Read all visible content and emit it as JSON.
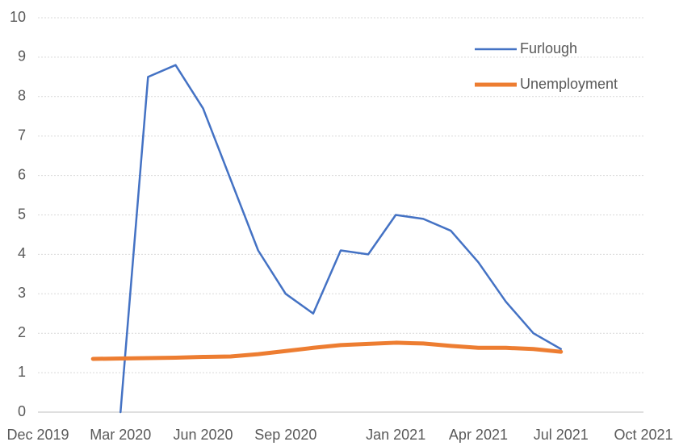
{
  "chart_data": {
    "type": "line",
    "x": [
      "2020-02",
      "2020-03",
      "2020-04",
      "2020-05",
      "2020-06",
      "2020-07",
      "2020-08",
      "2020-09",
      "2020-10",
      "2020-11",
      "2020-12",
      "2021-01",
      "2021-02",
      "2021-03",
      "2021-04",
      "2021-05",
      "2021-06",
      "2021-07"
    ],
    "series": [
      {
        "name": "Furlough",
        "color": "#4472c4",
        "values": [
          null,
          0,
          8.5,
          8.8,
          7.7,
          5.9,
          4.1,
          3.0,
          2.5,
          4.1,
          4.0,
          5.0,
          4.9,
          4.6,
          3.8,
          2.8,
          2.0,
          1.6
        ]
      },
      {
        "name": "Unemployment",
        "color": "#ed7d31",
        "values": [
          1.35,
          1.36,
          1.37,
          1.38,
          1.4,
          1.41,
          1.47,
          1.55,
          1.63,
          1.7,
          1.73,
          1.76,
          1.74,
          1.68,
          1.63,
          1.63,
          1.6,
          1.53
        ]
      }
    ],
    "xlim": [
      "2019-12",
      "2021-10"
    ],
    "xticks": [
      {
        "value": "2019-12",
        "label": "Dec 2019"
      },
      {
        "value": "2020-03",
        "label": "Mar 2020"
      },
      {
        "value": "2020-06",
        "label": "Jun 2020"
      },
      {
        "value": "2020-09",
        "label": "Sep 2020"
      },
      {
        "value": "2021-01",
        "label": "Jan 2021"
      },
      {
        "value": "2021-04",
        "label": "Apr 2021"
      },
      {
        "value": "2021-07",
        "label": "Jul 2021"
      },
      {
        "value": "2021-10",
        "label": "Oct 2021"
      }
    ],
    "ylim": [
      0,
      10
    ],
    "yticks": [
      0,
      1,
      2,
      3,
      4,
      5,
      6,
      7,
      8,
      9,
      10
    ],
    "grid": true,
    "legend": "upper right"
  }
}
